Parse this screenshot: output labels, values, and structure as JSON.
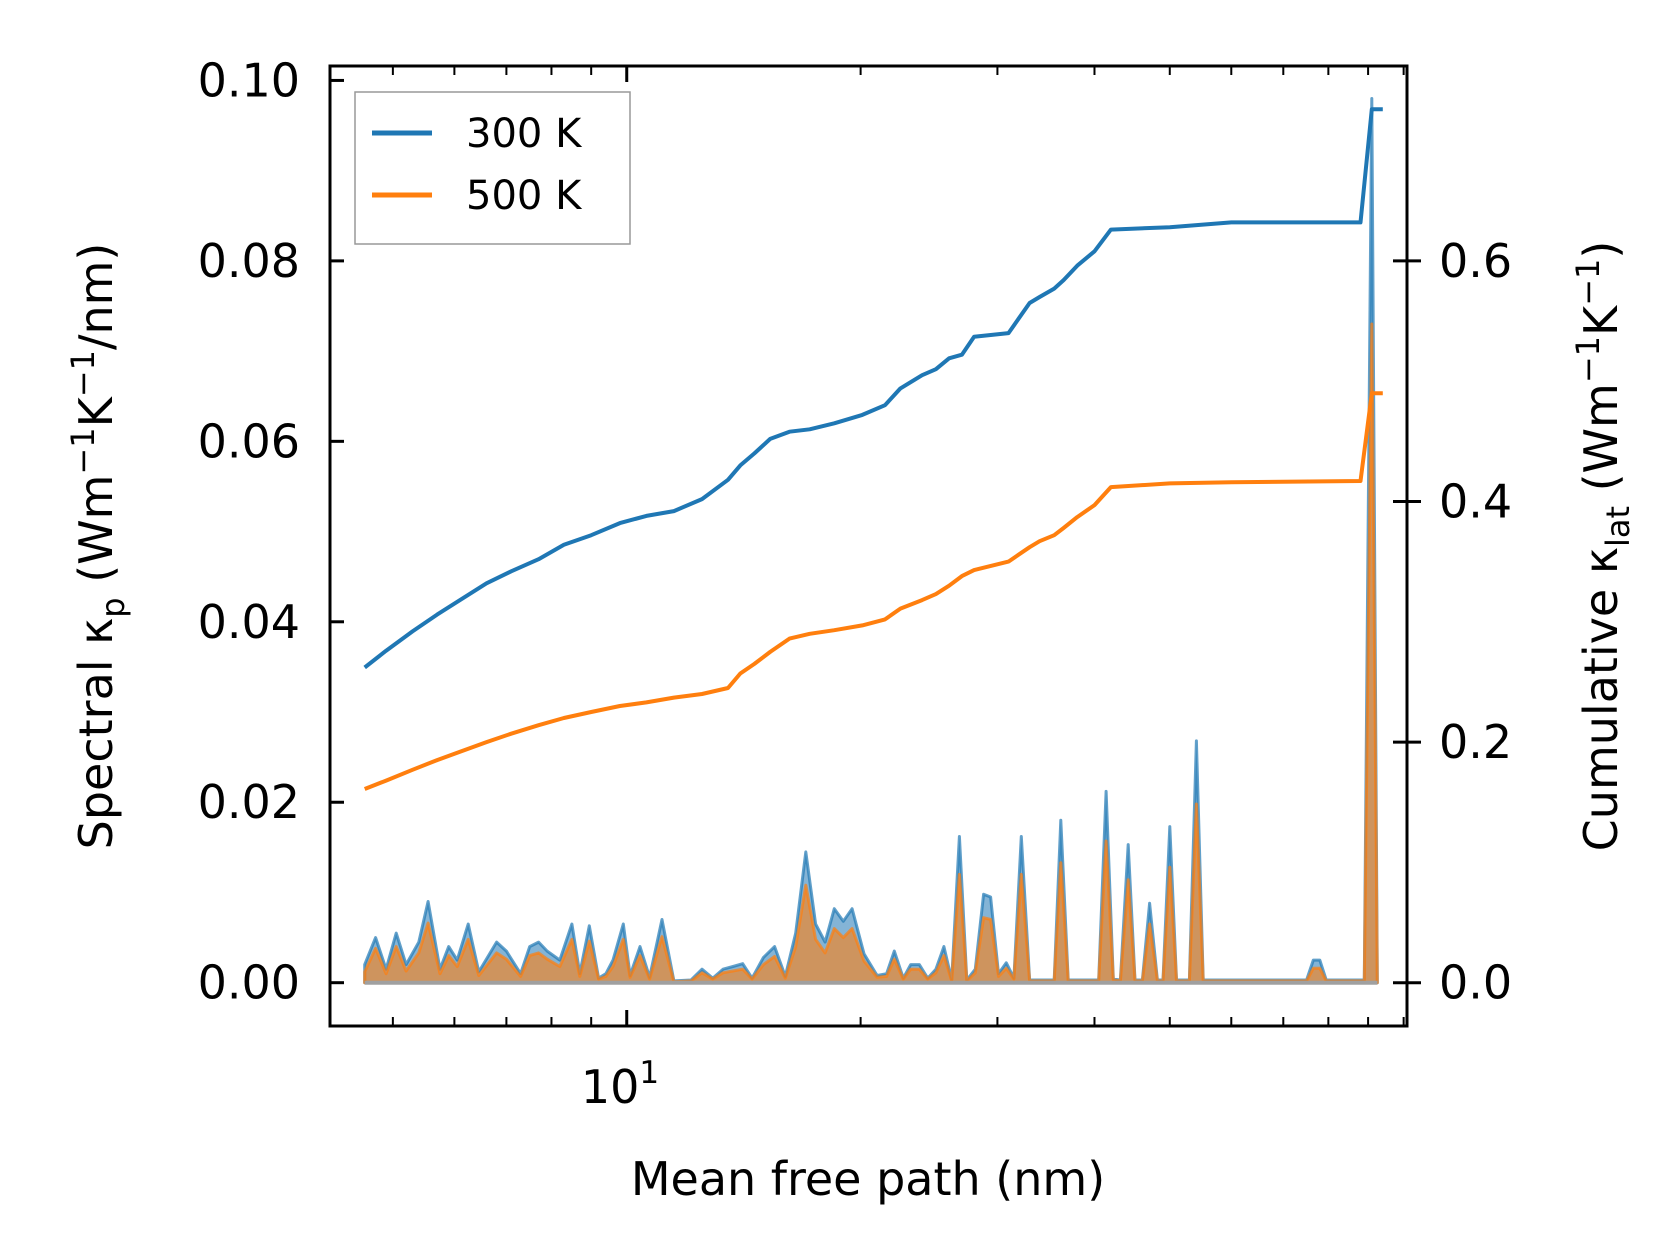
{
  "chart_data": {
    "type": "line",
    "title": "",
    "xlabel": "Mean free path (nm)",
    "ylabel_left": {
      "prefix": "Spectral κ",
      "sub": "p",
      "unit_open": " (Wm",
      "sup1": "−1",
      "mid": "K",
      "sup2": "−1",
      "end": "/nm)"
    },
    "ylabel_right": {
      "prefix": "Cumulative κ",
      "sub": "lat",
      "unit_open": " (Wm",
      "sup1": "−1",
      "mid": "K",
      "sup2": "−1",
      "end": ")"
    },
    "xscale": "log",
    "xlim": [
      4.15,
      101
    ],
    "x_major_tick": {
      "value": 10,
      "base": "10",
      "exp": "1"
    },
    "ylim_left": [
      -0.0048,
      0.1016
    ],
    "ylim_right": [
      -0.036,
      0.762
    ],
    "yticks_left": [
      "0.00",
      "0.02",
      "0.04",
      "0.06",
      "0.08",
      "0.10"
    ],
    "yticks_left_values": [
      0,
      0.02,
      0.04,
      0.06,
      0.08,
      0.1
    ],
    "yticks_right": [
      "0.0",
      "0.2",
      "0.4",
      "0.6"
    ],
    "yticks_right_values": [
      0,
      0.2,
      0.4,
      0.6
    ],
    "legend": {
      "placement": "top-left",
      "entries": [
        "300 K",
        "500 K"
      ]
    },
    "colors": {
      "s300": "#1f77b4",
      "s500": "#ff7f0e",
      "frame": "#000000",
      "legend_border": "#999999"
    },
    "series_cumulative": [
      {
        "name": "300 K",
        "axis": "right",
        "points": [
          [
            4.6,
            0.262
          ],
          [
            4.9,
            0.276
          ],
          [
            5.3,
            0.292
          ],
          [
            5.7,
            0.306
          ],
          [
            6.1,
            0.318
          ],
          [
            6.6,
            0.332
          ],
          [
            7.1,
            0.342
          ],
          [
            7.7,
            0.352
          ],
          [
            8.3,
            0.364
          ],
          [
            9.0,
            0.372
          ],
          [
            9.8,
            0.382
          ],
          [
            10.6,
            0.388
          ],
          [
            11.5,
            0.392
          ],
          [
            12.5,
            0.402
          ],
          [
            13.5,
            0.418
          ],
          [
            14.0,
            0.43
          ],
          [
            14.6,
            0.44
          ],
          [
            15.3,
            0.452
          ],
          [
            16.2,
            0.458
          ],
          [
            17.2,
            0.46
          ],
          [
            18.5,
            0.465
          ],
          [
            20.1,
            0.472
          ],
          [
            21.5,
            0.48
          ],
          [
            22.5,
            0.494
          ],
          [
            24.0,
            0.505
          ],
          [
            25.0,
            0.51
          ],
          [
            26.0,
            0.519
          ],
          [
            27.0,
            0.522
          ],
          [
            28.0,
            0.537
          ],
          [
            31.0,
            0.54
          ],
          [
            33.0,
            0.565
          ],
          [
            34.0,
            0.57
          ],
          [
            35.5,
            0.577
          ],
          [
            36.5,
            0.584
          ],
          [
            38.0,
            0.596
          ],
          [
            40.0,
            0.608
          ],
          [
            42.0,
            0.626
          ],
          [
            50.0,
            0.628
          ],
          [
            60.0,
            0.632
          ],
          [
            88.0,
            0.632
          ],
          [
            91.0,
            0.726
          ],
          [
            94.0,
            0.726
          ]
        ]
      },
      {
        "name": "500 K",
        "axis": "right",
        "points": [
          [
            4.6,
            0.161
          ],
          [
            4.9,
            0.168
          ],
          [
            5.3,
            0.177
          ],
          [
            5.7,
            0.185
          ],
          [
            6.1,
            0.192
          ],
          [
            6.6,
            0.2
          ],
          [
            7.1,
            0.207
          ],
          [
            7.7,
            0.214
          ],
          [
            8.3,
            0.22
          ],
          [
            9.0,
            0.225
          ],
          [
            9.8,
            0.23
          ],
          [
            10.6,
            0.233
          ],
          [
            11.5,
            0.237
          ],
          [
            12.5,
            0.24
          ],
          [
            13.5,
            0.245
          ],
          [
            14.0,
            0.257
          ],
          [
            14.6,
            0.265
          ],
          [
            15.3,
            0.275
          ],
          [
            16.2,
            0.286
          ],
          [
            17.2,
            0.29
          ],
          [
            18.5,
            0.293
          ],
          [
            20.1,
            0.297
          ],
          [
            21.5,
            0.302
          ],
          [
            22.5,
            0.311
          ],
          [
            24.0,
            0.318
          ],
          [
            25.0,
            0.323
          ],
          [
            26.0,
            0.33
          ],
          [
            27.0,
            0.338
          ],
          [
            28.0,
            0.343
          ],
          [
            31.0,
            0.35
          ],
          [
            33.0,
            0.362
          ],
          [
            34.0,
            0.367
          ],
          [
            35.5,
            0.372
          ],
          [
            36.5,
            0.378
          ],
          [
            38.0,
            0.387
          ],
          [
            40.0,
            0.397
          ],
          [
            42.0,
            0.412
          ],
          [
            50.0,
            0.415
          ],
          [
            60.0,
            0.416
          ],
          [
            88.0,
            0.417
          ],
          [
            91.0,
            0.49
          ],
          [
            94.0,
            0.49
          ]
        ]
      }
    ],
    "series_spectral": [
      {
        "name": "300 K",
        "axis": "left",
        "points": [
          [
            4.6,
            0.002
          ],
          [
            4.75,
            0.005
          ],
          [
            4.9,
            0.0015
          ],
          [
            5.05,
            0.0055
          ],
          [
            5.2,
            0.002
          ],
          [
            5.4,
            0.0045
          ],
          [
            5.55,
            0.009
          ],
          [
            5.75,
            0.0015
          ],
          [
            5.9,
            0.004
          ],
          [
            6.05,
            0.0025
          ],
          [
            6.25,
            0.0065
          ],
          [
            6.45,
            0.0012
          ],
          [
            6.8,
            0.0045
          ],
          [
            7.0,
            0.0035
          ],
          [
            7.3,
            0.001
          ],
          [
            7.5,
            0.004
          ],
          [
            7.7,
            0.0045
          ],
          [
            7.9,
            0.0035
          ],
          [
            8.2,
            0.0025
          ],
          [
            8.5,
            0.0065
          ],
          [
            8.7,
            0.001
          ],
          [
            8.95,
            0.0063
          ],
          [
            9.2,
            0.0005
          ],
          [
            9.4,
            0.001
          ],
          [
            9.6,
            0.0025
          ],
          [
            9.9,
            0.0065
          ],
          [
            10.1,
            0.0008
          ],
          [
            10.4,
            0.004
          ],
          [
            10.7,
            0.0006
          ],
          [
            11.1,
            0.007
          ],
          [
            11.5,
            0.0002
          ],
          [
            12.1,
            0.0003
          ],
          [
            12.5,
            0.0015
          ],
          [
            12.9,
            0.0005
          ],
          [
            13.3,
            0.0015
          ],
          [
            13.7,
            0.0018
          ],
          [
            14.1,
            0.0021
          ],
          [
            14.5,
            0.0005
          ],
          [
            15.0,
            0.0028
          ],
          [
            15.5,
            0.004
          ],
          [
            16.0,
            0.0007
          ],
          [
            16.5,
            0.0055
          ],
          [
            17.0,
            0.0145
          ],
          [
            17.5,
            0.0065
          ],
          [
            18.0,
            0.0045
          ],
          [
            18.5,
            0.0082
          ],
          [
            19.0,
            0.0068
          ],
          [
            19.5,
            0.0082
          ],
          [
            20.2,
            0.0032
          ],
          [
            21.0,
            0.0008
          ],
          [
            21.6,
            0.001
          ],
          [
            22.1,
            0.0035
          ],
          [
            22.7,
            0.0005
          ],
          [
            23.2,
            0.002
          ],
          [
            23.8,
            0.002
          ],
          [
            24.4,
            0.0005
          ],
          [
            25.0,
            0.0015
          ],
          [
            25.6,
            0.004
          ],
          [
            26.2,
            0.0003
          ],
          [
            26.8,
            0.0162
          ],
          [
            27.4,
            0.0003
          ],
          [
            28.1,
            0.0015
          ],
          [
            28.8,
            0.0098
          ],
          [
            29.4,
            0.0095
          ],
          [
            30.1,
            0.001
          ],
          [
            30.8,
            0.0022
          ],
          [
            31.5,
            0.0005
          ],
          [
            32.2,
            0.0162
          ],
          [
            33.0,
            0.0003
          ],
          [
            35.5,
            0.0003
          ],
          [
            36.2,
            0.018
          ],
          [
            37.0,
            0.0003
          ],
          [
            40.5,
            0.0003
          ],
          [
            41.4,
            0.0212
          ],
          [
            42.3,
            0.0004
          ],
          [
            43.2,
            0.0003
          ],
          [
            44.2,
            0.0153
          ],
          [
            45.1,
            0.0003
          ],
          [
            46.1,
            0.0003
          ],
          [
            47.1,
            0.0088
          ],
          [
            48.2,
            0.0003
          ],
          [
            49.0,
            0.0003
          ],
          [
            50.0,
            0.0173
          ],
          [
            51.0,
            0.0003
          ],
          [
            53.0,
            0.0003
          ],
          [
            54.1,
            0.0268
          ],
          [
            55.2,
            0.0003
          ],
          [
            75.0,
            0.0003
          ],
          [
            76.5,
            0.0025
          ],
          [
            78.0,
            0.0025
          ],
          [
            79.5,
            0.0003
          ],
          [
            89.0,
            0.0003
          ],
          [
            90.0,
            0.05
          ],
          [
            91.0,
            0.098
          ],
          [
            92.5,
            0.0003
          ]
        ]
      },
      {
        "name": "500 K",
        "axis": "left",
        "points": [
          [
            4.6,
            0.0012
          ],
          [
            4.75,
            0.0038
          ],
          [
            4.9,
            0.001
          ],
          [
            5.05,
            0.004
          ],
          [
            5.2,
            0.0013
          ],
          [
            5.4,
            0.0033
          ],
          [
            5.55,
            0.0066
          ],
          [
            5.75,
            0.001
          ],
          [
            5.9,
            0.003
          ],
          [
            6.05,
            0.0018
          ],
          [
            6.25,
            0.0048
          ],
          [
            6.45,
            0.0008
          ],
          [
            6.8,
            0.0033
          ],
          [
            7.0,
            0.0026
          ],
          [
            7.3,
            0.0007
          ],
          [
            7.5,
            0.003
          ],
          [
            7.7,
            0.0033
          ],
          [
            7.9,
            0.0026
          ],
          [
            8.2,
            0.0018
          ],
          [
            8.5,
            0.0048
          ],
          [
            8.7,
            0.0007
          ],
          [
            8.95,
            0.0046
          ],
          [
            9.2,
            0.0004
          ],
          [
            9.4,
            0.0007
          ],
          [
            9.6,
            0.0018
          ],
          [
            9.9,
            0.0048
          ],
          [
            10.1,
            0.0006
          ],
          [
            10.4,
            0.003
          ],
          [
            10.7,
            0.0004
          ],
          [
            11.1,
            0.0051
          ],
          [
            11.5,
            0.0001
          ],
          [
            12.1,
            0.0002
          ],
          [
            12.5,
            0.0011
          ],
          [
            12.9,
            0.0004
          ],
          [
            13.3,
            0.0011
          ],
          [
            13.7,
            0.0013
          ],
          [
            14.1,
            0.0015
          ],
          [
            14.5,
            0.0004
          ],
          [
            15.0,
            0.002
          ],
          [
            15.5,
            0.0029
          ],
          [
            16.0,
            0.0005
          ],
          [
            16.5,
            0.004
          ],
          [
            17.0,
            0.0108
          ],
          [
            17.5,
            0.0048
          ],
          [
            18.0,
            0.0033
          ],
          [
            18.5,
            0.006
          ],
          [
            19.0,
            0.005
          ],
          [
            19.5,
            0.006
          ],
          [
            20.2,
            0.0024
          ],
          [
            21.0,
            0.0006
          ],
          [
            21.6,
            0.0007
          ],
          [
            22.1,
            0.0026
          ],
          [
            22.7,
            0.0004
          ],
          [
            23.2,
            0.0015
          ],
          [
            23.8,
            0.0015
          ],
          [
            24.4,
            0.0004
          ],
          [
            25.0,
            0.0011
          ],
          [
            25.6,
            0.003
          ],
          [
            26.2,
            0.0002
          ],
          [
            26.8,
            0.012
          ],
          [
            27.4,
            0.0002
          ],
          [
            28.1,
            0.0011
          ],
          [
            28.8,
            0.0072
          ],
          [
            29.4,
            0.007
          ],
          [
            30.1,
            0.0007
          ],
          [
            30.8,
            0.0016
          ],
          [
            31.5,
            0.0004
          ],
          [
            32.2,
            0.012
          ],
          [
            33.0,
            0.0002
          ],
          [
            35.5,
            0.0002
          ],
          [
            36.2,
            0.0133
          ],
          [
            37.0,
            0.0002
          ],
          [
            40.5,
            0.0002
          ],
          [
            41.4,
            0.0157
          ],
          [
            42.3,
            0.0003
          ],
          [
            43.2,
            0.0002
          ],
          [
            44.2,
            0.0114
          ],
          [
            45.1,
            0.0002
          ],
          [
            46.1,
            0.0002
          ],
          [
            47.1,
            0.0065
          ],
          [
            48.2,
            0.0002
          ],
          [
            49.0,
            0.0002
          ],
          [
            50.0,
            0.0128
          ],
          [
            51.0,
            0.0002
          ],
          [
            53.0,
            0.0002
          ],
          [
            54.1,
            0.0198
          ],
          [
            55.2,
            0.0002
          ],
          [
            75.0,
            0.0002
          ],
          [
            76.5,
            0.0016
          ],
          [
            78.0,
            0.0016
          ],
          [
            79.5,
            0.0002
          ],
          [
            89.0,
            0.0002
          ],
          [
            90.0,
            0.037
          ],
          [
            91.0,
            0.073
          ],
          [
            92.5,
            0.0002
          ]
        ]
      }
    ]
  }
}
